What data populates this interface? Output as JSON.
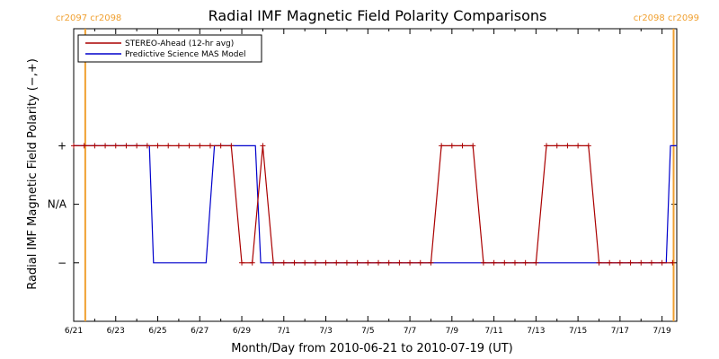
{
  "chart_data": {
    "type": "line",
    "title": "Radial IMF Magnetic Field Polarity Comparisons",
    "xlabel": "Month/Day from 2010-06-21 to 2010-07-19 (UT)",
    "ylabel": "Radial IMF Magnetic Field Polarity (−,+)",
    "x_tick_labels": [
      "6/21",
      "6/23",
      "6/25",
      "6/27",
      "6/29",
      "7/1",
      "7/3",
      "7/5",
      "7/7",
      "7/9",
      "7/11",
      "7/13",
      "7/15",
      "7/17",
      "7/19"
    ],
    "x_tick_days": [
      0,
      2,
      4,
      6,
      8,
      10,
      12,
      14,
      16,
      18,
      20,
      22,
      24,
      26,
      28
    ],
    "xlim": [
      0,
      28.7
    ],
    "y_tick_labels": [
      "+",
      "N/A",
      "−"
    ],
    "y_tick_values": [
      1,
      0,
      -1
    ],
    "ylim": [
      -2,
      3
    ],
    "grid": false,
    "legend_position": "top-left",
    "cr_markers": [
      {
        "day": 0.55,
        "label": "cr2097 cr2098"
      },
      {
        "day": 28.55,
        "label": "cr2098 cr2099"
      }
    ],
    "series": [
      {
        "name": "STEREO-Ahead (12-hr avg)",
        "color": "#aa0000",
        "x": [
          0,
          0.5,
          1,
          1.5,
          2,
          2.5,
          3,
          3.5,
          4,
          4.5,
          5,
          5.5,
          6,
          6.5,
          7,
          7.5,
          8,
          8.5,
          9,
          9.5,
          10,
          10.5,
          11,
          11.5,
          12,
          12.5,
          13,
          13.5,
          14,
          14.5,
          15,
          15.5,
          16,
          16.5,
          17,
          17.5,
          18,
          18.5,
          19,
          19.5,
          20,
          20.5,
          21,
          21.5,
          22,
          22.5,
          23,
          23.5,
          24,
          24.5,
          25,
          25.5,
          26,
          26.5,
          27,
          27.5,
          28,
          28.5
        ],
        "y": [
          1,
          1,
          1,
          1,
          1,
          1,
          1,
          1,
          1,
          1,
          1,
          1,
          1,
          1,
          1,
          1,
          -1,
          -1,
          1,
          -1,
          -1,
          -1,
          -1,
          -1,
          -1,
          -1,
          -1,
          -1,
          -1,
          -1,
          -1,
          -1,
          -1,
          -1,
          -1,
          1,
          1,
          1,
          1,
          -1,
          -1,
          -1,
          -1,
          -1,
          -1,
          1,
          1,
          1,
          1,
          1,
          -1,
          -1,
          -1,
          -1,
          -1,
          -1,
          -1,
          -1
        ]
      },
      {
        "name": "Predictive Science MAS Model",
        "color": "#0000cc",
        "x": [
          0,
          3.6,
          3.8,
          6.3,
          6.7,
          8.65,
          8.9,
          28.2,
          28.4,
          28.7
        ],
        "y": [
          1,
          1,
          -1,
          -1,
          1,
          1,
          -1,
          -1,
          1,
          1
        ]
      }
    ]
  }
}
